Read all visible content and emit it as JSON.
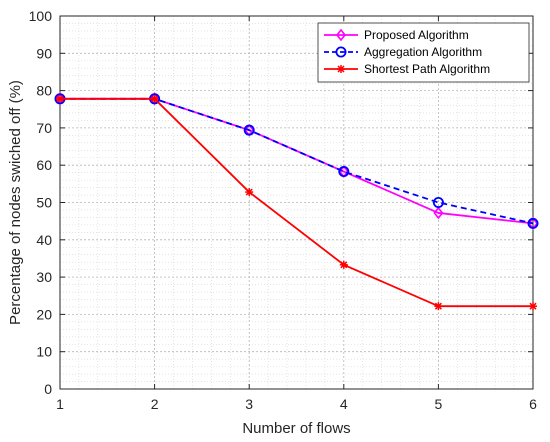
{
  "chart_data": {
    "type": "line",
    "xlabel": "Number of flows",
    "ylabel": "Percentage of nodes swiched off (%)",
    "xlim": [
      1,
      6
    ],
    "ylim": [
      0,
      100
    ],
    "x_ticks": [
      1,
      2,
      3,
      4,
      5,
      6
    ],
    "y_ticks": [
      0,
      10,
      20,
      30,
      40,
      50,
      60,
      70,
      80,
      90,
      100
    ],
    "grid": true,
    "minor_grid": true,
    "legend_position": "top-right",
    "x": [
      1,
      2,
      3,
      4,
      5,
      6
    ],
    "series": [
      {
        "name": "Proposed Algorithm",
        "values": [
          77.8,
          77.8,
          69.4,
          58.3,
          47.2,
          44.4
        ],
        "color": "#ff00ff",
        "marker": "diamond",
        "line_style": "solid"
      },
      {
        "name": "Aggregation Algorithm",
        "values": [
          77.8,
          77.8,
          69.4,
          58.3,
          50.0,
          44.4
        ],
        "color": "#0000ff",
        "marker": "circle",
        "line_style": "dashed"
      },
      {
        "name": "Shortest Path Algorithm",
        "values": [
          77.8,
          77.8,
          52.8,
          33.3,
          22.2,
          22.2
        ],
        "color": "#ff0000",
        "marker": "asterisk",
        "line_style": "solid"
      }
    ]
  }
}
